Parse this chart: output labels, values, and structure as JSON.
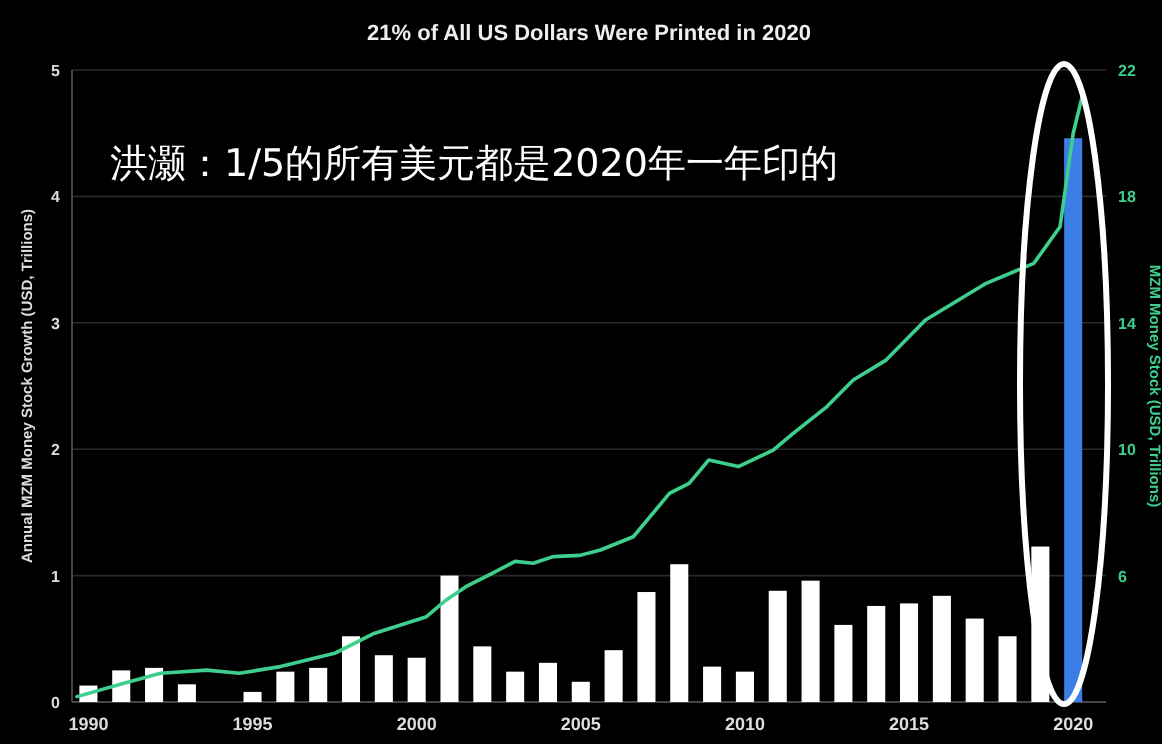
{
  "chart_data": {
    "type": "bar",
    "title": "21% of All US Dollars Were Printed in 2020",
    "ylabel": "Annual MZM Money Stock Growth (USD, Trillions)",
    "y2label": "MZM Money Stock (USD, Trillions)",
    "annotations": [
      "洪灏：1/5的所有美元都是2020年一年印的"
    ],
    "xlim": [
      1989.5,
      2021
    ],
    "xticks": [
      1990,
      1995,
      2000,
      2005,
      2010,
      2015,
      2020
    ],
    "ylim": [
      0,
      5
    ],
    "yticks": [
      0,
      1,
      2,
      3,
      4,
      5
    ],
    "y2lim": [
      2,
      22
    ],
    "y2ticks": [
      6,
      10,
      14,
      18,
      22
    ],
    "grid": "y",
    "series": [
      {
        "x": [
          1990,
          1991,
          1992,
          1993,
          1995,
          1996,
          1997,
          1998,
          1999,
          2000,
          2001,
          2002,
          2003,
          2004,
          2005,
          2006,
          2007,
          2008,
          2009,
          2010,
          2011,
          2012,
          2013,
          2014,
          2015,
          2016,
          2017,
          2018,
          2019,
          2020
        ],
        "values": [
          0.13,
          0.25,
          0.27,
          0.14,
          0.08,
          0.24,
          0.27,
          0.52,
          0.37,
          0.35,
          1.0,
          0.44,
          0.24,
          0.31,
          0.16,
          0.41,
          0.87,
          1.09,
          0.28,
          0.24,
          0.88,
          0.96,
          0.61,
          0.76,
          0.78,
          0.84,
          0.66,
          0.52,
          1.23,
          4.46
        ],
        "colors": [
          "#ffffff",
          "#ffffff",
          "#ffffff",
          "#ffffff",
          "#ffffff",
          "#ffffff",
          "#ffffff",
          "#ffffff",
          "#ffffff",
          "#ffffff",
          "#ffffff",
          "#ffffff",
          "#ffffff",
          "#ffffff",
          "#ffffff",
          "#ffffff",
          "#ffffff",
          "#ffffff",
          "#ffffff",
          "#ffffff",
          "#ffffff",
          "#ffffff",
          "#ffffff",
          "#ffffff",
          "#ffffff",
          "#ffffff",
          "#ffffff",
          "#ffffff",
          "#ffffff",
          "#3b7fe6"
        ]
      },
      {
        "type": "line",
        "axis": "y2",
        "color": "#3ecf8e",
        "x": [
          1989.65,
          1991.08,
          1992.2,
          1993.6,
          1994.6,
          1995.85,
          1997.5,
          1998.7,
          2000.3,
          2000.9,
          2001.5,
          2002.3,
          2003.0,
          2003.55,
          2004.16,
          2004.97,
          2005.6,
          2006.6,
          2007.7,
          2008.3,
          2008.9,
          2009.8,
          2010.86,
          2011.47,
          2012.5,
          2013.3,
          2014.3,
          2015.5,
          2017.35,
          2018.8,
          2019.6,
          2020.0,
          2020.3
        ],
        "values": [
          2.17,
          2.59,
          2.91,
          3.01,
          2.91,
          3.12,
          3.54,
          4.17,
          4.7,
          5.23,
          5.65,
          6.07,
          6.45,
          6.39,
          6.6,
          6.64,
          6.81,
          7.23,
          8.6,
          8.92,
          9.66,
          9.45,
          9.97,
          10.5,
          11.35,
          12.19,
          12.82,
          14.09,
          15.25,
          15.88,
          17.04,
          19.99,
          21.27
        ]
      }
    ]
  }
}
